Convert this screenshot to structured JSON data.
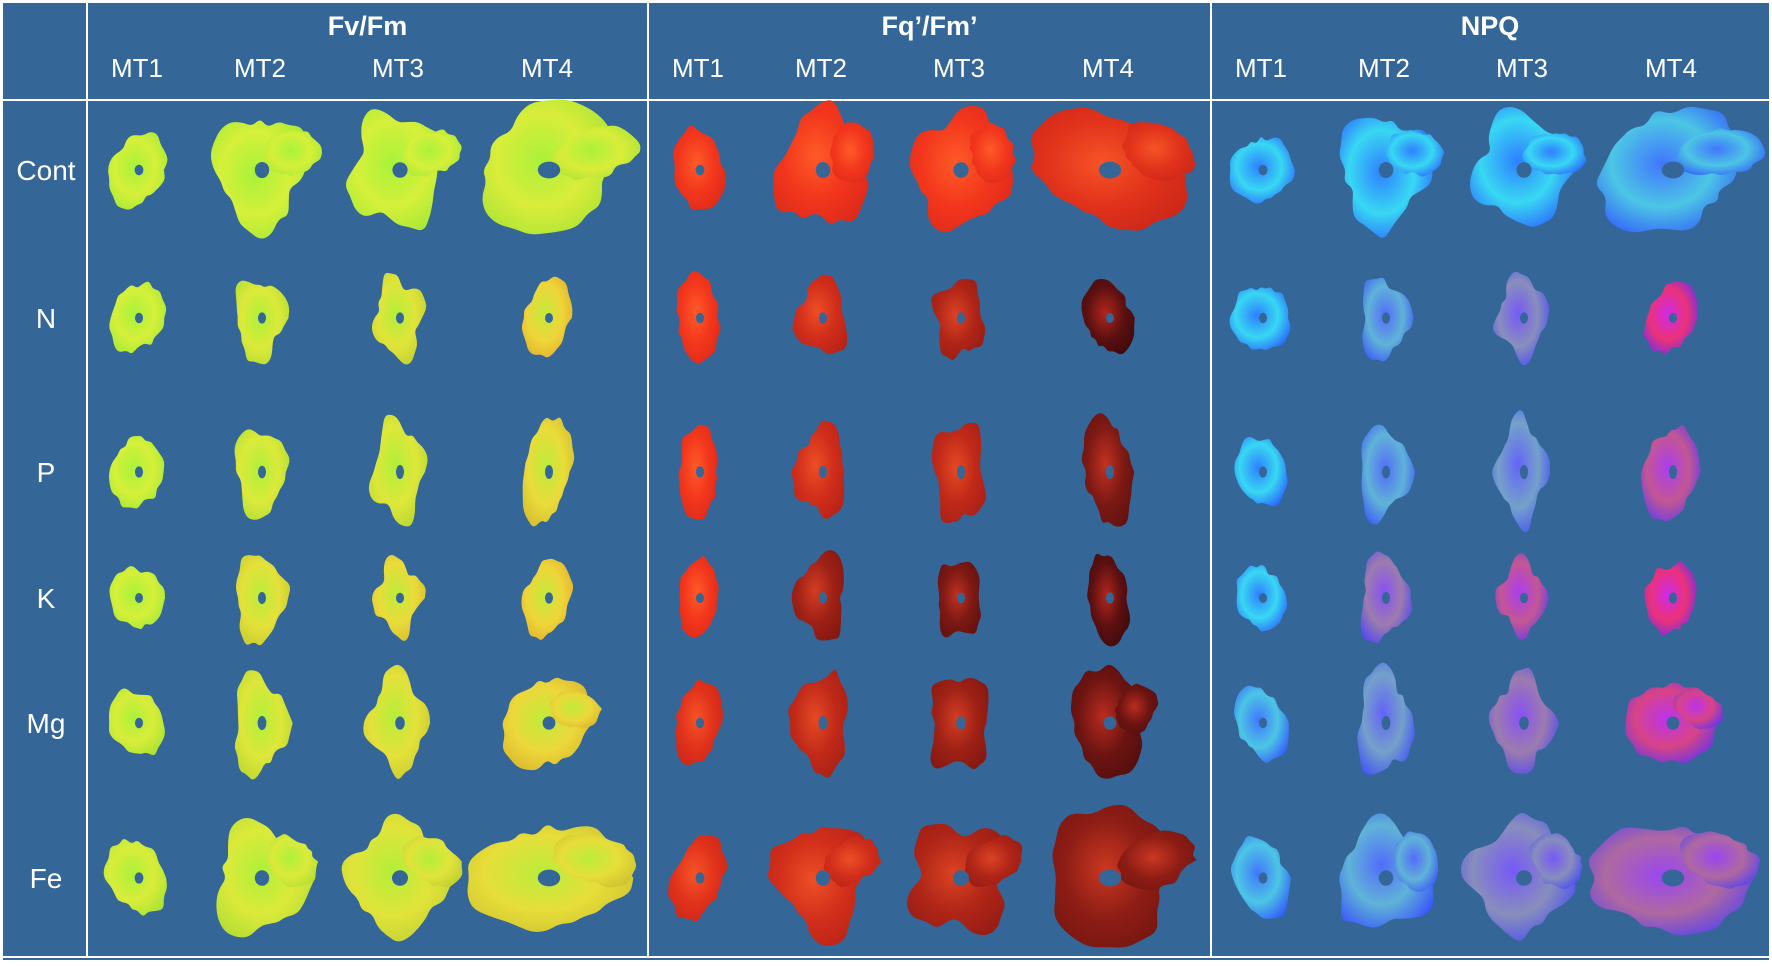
{
  "background_color": "#346698",
  "line_color": "#ffffff",
  "groups": [
    {
      "title": "Fv/Fm",
      "columns": [
        "MT1",
        "MT2",
        "MT3",
        "MT4"
      ],
      "palette": "green-yellow"
    },
    {
      "title": "Fq’/Fm’",
      "columns": [
        "MT1",
        "MT2",
        "MT3",
        "MT4"
      ],
      "palette": "red"
    },
    {
      "title": "NPQ",
      "columns": [
        "MT1",
        "MT2",
        "MT3",
        "MT4"
      ],
      "palette": "blue-cyan-magenta"
    }
  ],
  "rows": [
    "Cont",
    "N",
    "P",
    "K",
    "Mg",
    "Fe"
  ]
}
